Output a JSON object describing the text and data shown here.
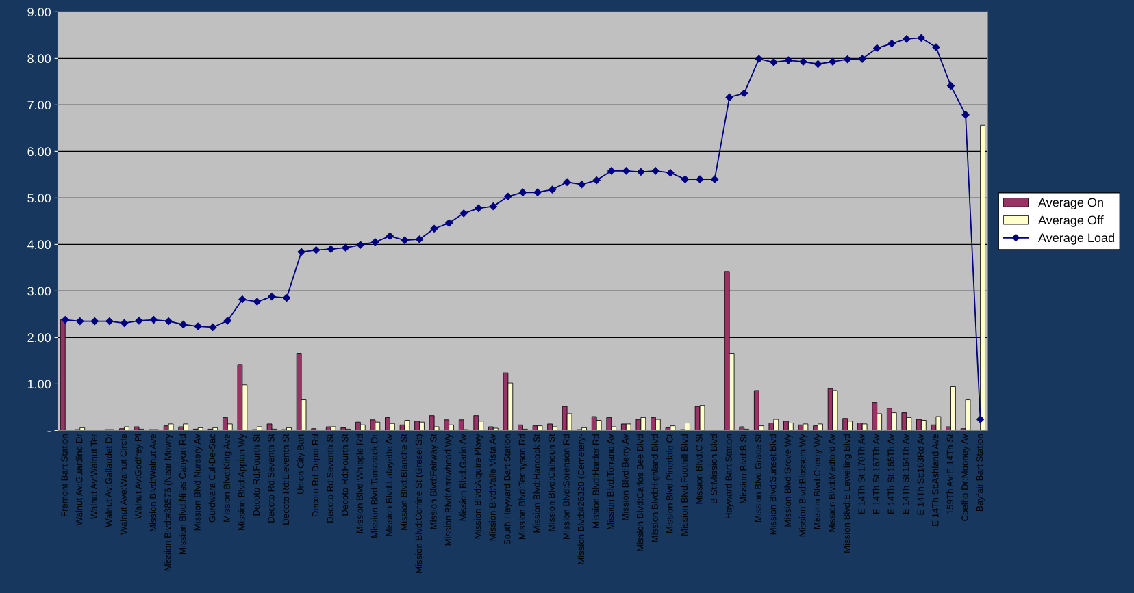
{
  "chart_data": {
    "type": "bar",
    "categories": [
      "Fremont Bart Station",
      "Walnut Av:Guardino Dr",
      "Walnut Av:Walnut Ter",
      "Walnut Av:Gallaudet Dr",
      "Walnut Ave:Walnut Circle",
      "Walnut Av:Godfrey Pl",
      "Mission Blvd:Walnut Ave",
      "Mission Blvd:#38576 (Near Mowry",
      "Mission Blvd:Niles Canyon Rd",
      "Mission Blvd:Nursery Av",
      "Gurdwara Cul-De-Sac",
      "Mission Blvd:King Ave",
      "Mission Blvd:Appian Wy",
      "Decoto Rd:Fourth St",
      "Decoto Rd:Seventh St",
      "Decoto Rd:Eleventh St",
      "Union City Bart",
      "Decoto Rd:Depot Rd",
      "Decoto Rd:Seventh St",
      "Decoto Rd:Fourth St",
      "Mission Blvd:Whipple Rd",
      "Mission Blvd:Tamarack Dr",
      "Mission Blvd:Lafayette Av",
      "Mission Blvd:Blanche St",
      "Mission Blvd:Corrine St (Gresel St)",
      "Mission Blvd:Fairway St",
      "Mission Blvd:Arrowhead Wy",
      "Mission Blvd:Garin Av",
      "Mission Blvd:Alquire Pkwy",
      "Mission Blvd:Valle Vista Av",
      "South Hayward Bart Station",
      "Mission Blvd:Tennyson Rd",
      "Mission Blvd:Hancock St",
      "Mission Blvd:Calhoun St",
      "Mission Blvd:Sorenson Rd",
      "Mission Blvd:#26320 (Cemetery-",
      "Mission Blvd:Harder Rd",
      "Mission Blvd:Torrano Av",
      "Mission Blvd:Berry Av",
      "Mission Blvd:Carlos Bee Blvd",
      "Mission Blvd:Highland Blvd",
      "Mission Blvd:Pinedale Ct",
      "Mission Blvd:Foothill Blvd",
      "Mission Blvd:C St",
      "B St:Mission Blvd",
      "Hayward Bart Station",
      "Mission Blvd:B St",
      "Mission Blvd:Grace St",
      "Mission Blvd:Sunset Blvd",
      "Mission Blvd:Grove Wy",
      "Mission Blvd:Blossom Wy",
      "Mission Blvd:Cherry Wy",
      "Mission Blvd:Medford Av",
      "Mission Blvd:E Lewelling Blvd",
      "E 14Th St:170Th Av",
      "E 14Th St:167Th Av",
      "E 14Th St:165Th Av",
      "E 14Th St:164Th Av",
      "E 14Th St:163Rd Av",
      "E 14Th St:Ashland Ave",
      "159Th Av:E 14Th St",
      "Coelho Dr:Mooney Av",
      "Bayfair Bart Station"
    ],
    "series": [
      {
        "name": "Average On",
        "color": "#993366",
        "values": [
          2.38,
          0.02,
          0,
          0.02,
          0.04,
          0.08,
          0.02,
          0.1,
          0.08,
          0.03,
          0.03,
          0.28,
          1.42,
          0.02,
          0.14,
          0.02,
          1.66,
          0.04,
          0.08,
          0.06,
          0.18,
          0.23,
          0.28,
          0.12,
          0.2,
          0.32,
          0.23,
          0.23,
          0.32,
          0.08,
          1.24,
          0.12,
          0.1,
          0.14,
          0.52,
          0.02,
          0.3,
          0.28,
          0.14,
          0.24,
          0.28,
          0.06,
          0.02,
          0.52,
          0,
          3.42,
          0.08,
          0.86,
          0.16,
          0.2,
          0.12,
          0.1,
          0.9,
          0.26,
          0.16,
          0.6,
          0.48,
          0.38,
          0.24,
          0.12,
          0.08,
          0.04,
          0
        ]
      },
      {
        "name": "Average Off",
        "color": "#ffffcc",
        "values": [
          0,
          0.06,
          0,
          0.02,
          0.08,
          0.03,
          0.02,
          0.14,
          0.14,
          0.06,
          0.06,
          0.14,
          0.98,
          0.08,
          0.03,
          0.06,
          0.66,
          0,
          0.08,
          0.03,
          0.12,
          0.18,
          0.15,
          0.22,
          0.18,
          0.08,
          0.12,
          0.02,
          0.2,
          0.05,
          1.02,
          0.03,
          0.1,
          0.08,
          0.36,
          0.06,
          0.22,
          0.08,
          0.14,
          0.28,
          0.24,
          0.1,
          0.16,
          0.54,
          0,
          1.66,
          0.03,
          0.1,
          0.24,
          0.16,
          0.14,
          0.14,
          0.86,
          0.2,
          0.14,
          0.36,
          0.38,
          0.28,
          0.22,
          0.3,
          0.94,
          0.66,
          6.56
        ]
      },
      {
        "name": "Average Load",
        "type": "line",
        "color": "#000080",
        "marker": "diamond",
        "values": [
          2.38,
          2.35,
          2.35,
          2.35,
          2.31,
          2.36,
          2.38,
          2.35,
          2.28,
          2.24,
          2.22,
          2.36,
          2.82,
          2.77,
          2.88,
          2.85,
          3.84,
          3.88,
          3.9,
          3.93,
          3.99,
          4.05,
          4.18,
          4.09,
          4.11,
          4.34,
          4.46,
          4.67,
          4.78,
          4.82,
          5.03,
          5.12,
          5.12,
          5.18,
          5.34,
          5.29,
          5.38,
          5.58,
          5.58,
          5.56,
          5.58,
          5.54,
          5.4,
          5.4,
          5.4,
          7.16,
          7.25,
          7.99,
          7.92,
          7.96,
          7.93,
          7.88,
          7.93,
          7.98,
          7.99,
          8.22,
          8.32,
          8.42,
          8.44,
          8.24,
          7.41,
          6.79,
          0.24
        ]
      }
    ],
    "ylim": [
      0,
      9
    ],
    "yticks": [
      {
        "value": 0,
        "label": "-"
      },
      {
        "value": 1,
        "label": "1.00"
      },
      {
        "value": 2,
        "label": "2.00"
      },
      {
        "value": 3,
        "label": "3.00"
      },
      {
        "value": 4,
        "label": "4.00"
      },
      {
        "value": 5,
        "label": "5.00"
      },
      {
        "value": 6,
        "label": "6.00"
      },
      {
        "value": 7,
        "label": "7.00"
      },
      {
        "value": 8,
        "label": "8.00"
      },
      {
        "value": 9,
        "label": "9.00"
      }
    ],
    "grid": "y",
    "legend": "right"
  }
}
